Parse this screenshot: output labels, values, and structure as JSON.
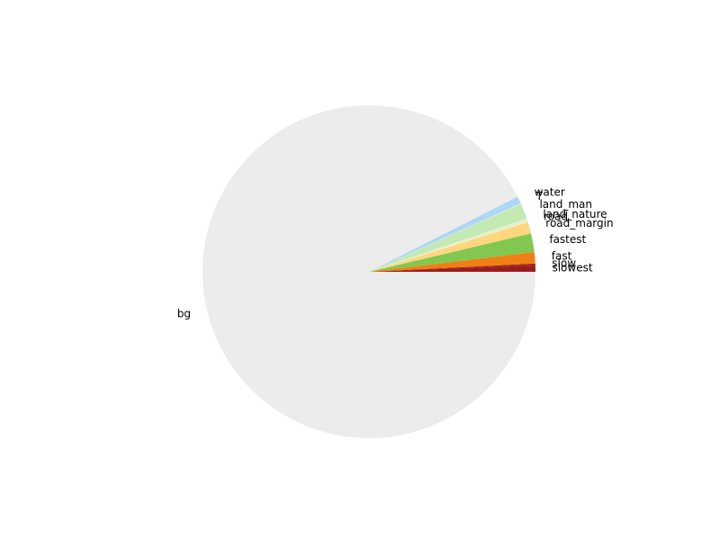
{
  "chart_data": {
    "type": "pie",
    "categories": [
      "slowest",
      "slow",
      "fast",
      "fastest",
      "road_margin",
      "road",
      "land_nature",
      "land_man",
      "T",
      "water",
      "bg"
    ],
    "values": [
      0.6,
      0.2,
      1.1,
      1.8,
      1.1,
      0.1,
      0.3,
      1.5,
      0.05,
      0.7,
      92.55
    ],
    "colors": [
      "#9b1c1c",
      "#a02419",
      "#f08015",
      "#82c850",
      "#fed67e",
      "#fee9b3",
      "#e1f0d0",
      "#c4eab4",
      "#d9ecf6",
      "#aed6f5",
      "#ececec"
    ],
    "start_angle_deg": 0,
    "direction": "counterclockwise",
    "title": "",
    "legend": "none"
  }
}
